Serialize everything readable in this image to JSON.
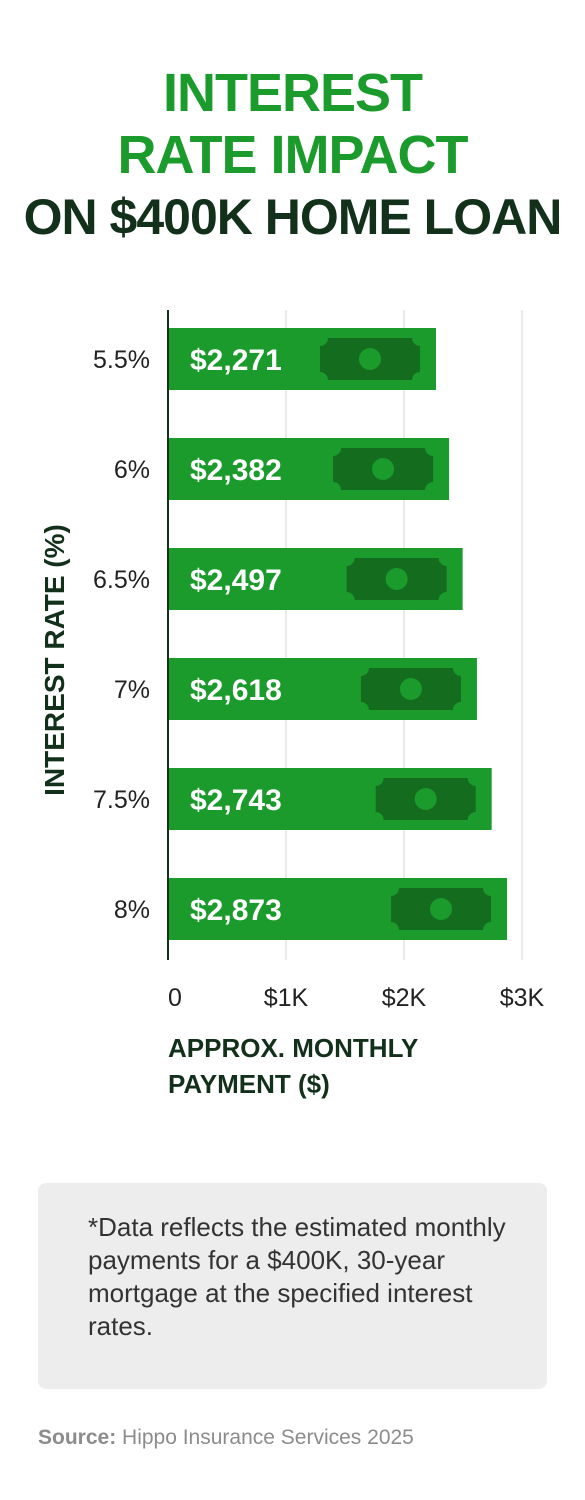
{
  "header": {
    "title_line1": "INTEREST",
    "title_line2": "RATE IMPACT",
    "title_line3": "ON $400K HOME LOAN"
  },
  "colors": {
    "accent": "#1a9b2b",
    "dark": "#12301a",
    "bill_dark": "#146d1e",
    "note_bg": "#ededed"
  },
  "chart_data": {
    "type": "bar",
    "orientation": "horizontal",
    "ylabel": "INTEREST RATE (%)",
    "xlabel": "APPROX. MONTHLY PAYMENT ($)",
    "categories": [
      "5.5%",
      "6%",
      "6.5%",
      "7%",
      "7.5%",
      "8%"
    ],
    "values": [
      2271,
      2382,
      2497,
      2618,
      2743,
      2873
    ],
    "data_labels": [
      "$2,271",
      "$2,382",
      "$2,497",
      "$2,618",
      "$2,743",
      "$2,873"
    ],
    "xticks": [
      0,
      1000,
      2000,
      3000
    ],
    "xtick_labels": [
      "0",
      "$1K",
      "$2K",
      "$3K"
    ],
    "xlim": [
      0,
      3000
    ],
    "grid": true,
    "bar_icon": "dollar-bill-icon"
  },
  "note": {
    "text": "*Data reflects the estimated monthly payments for a $400K, 30-year mortgage at the specified interest rates."
  },
  "source": {
    "label": "Source:",
    "text": " Hippo Insurance Services 2025"
  }
}
